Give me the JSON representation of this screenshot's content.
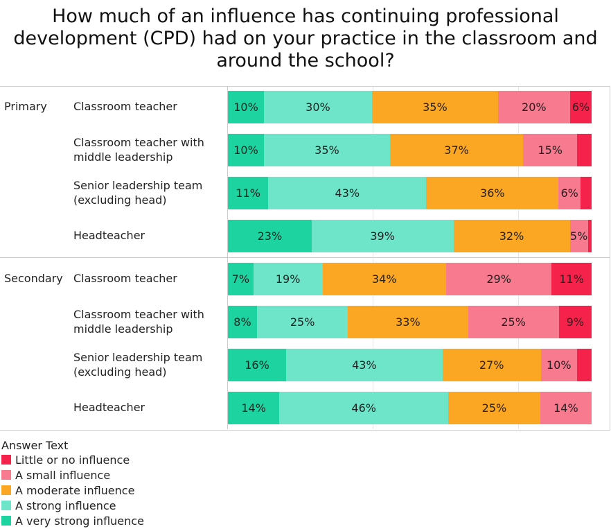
{
  "chart_data": {
    "type": "bar",
    "orientation": "horizontal-stacked-100",
    "title": "How much of an influence has continuing professional development (CPD) had on your practice in the classroom and around the school?",
    "groups": [
      {
        "name": "Primary",
        "rows": [
          {
            "label": "Classroom teacher",
            "values": [
              10,
              30,
              35,
              20,
              6
            ]
          },
          {
            "label": "Classroom teacher with middle leadership",
            "values": [
              10,
              35,
              37,
              15,
              4
            ]
          },
          {
            "label": "Senior leadership team (excluding head)",
            "values": [
              11,
              43,
              36,
              6,
              3
            ]
          },
          {
            "label": "Headteacher",
            "values": [
              23,
              39,
              32,
              5,
              1
            ]
          }
        ]
      },
      {
        "name": "Secondary",
        "rows": [
          {
            "label": "Classroom teacher",
            "values": [
              7,
              19,
              34,
              29,
              11
            ]
          },
          {
            "label": "Classroom teacher with middle leadership",
            "values": [
              8,
              25,
              33,
              25,
              9
            ]
          },
          {
            "label": "Senior leadership team (excluding head)",
            "values": [
              16,
              43,
              27,
              10,
              4
            ]
          },
          {
            "label": "Headteacher",
            "values": [
              14,
              46,
              25,
              14,
              0
            ]
          }
        ]
      }
    ],
    "series": [
      {
        "name": "A very strong influence",
        "color": "#1dd3a0"
      },
      {
        "name": "A strong influence",
        "color": "#6ee5c9"
      },
      {
        "name": "A moderate influence",
        "color": "#fba724"
      },
      {
        "name": "A small influence",
        "color": "#f87a8f"
      },
      {
        "name": "Little or no influence",
        "color": "#f5224b"
      }
    ],
    "label_min": 5,
    "legend_title": "Answer Text",
    "legend_order": [
      "Little or no influence",
      "A small influence",
      "A moderate influence",
      "A strong influence",
      "A very strong influence"
    ],
    "legend_position": "bottom-left",
    "xlim": [
      0,
      100
    ]
  }
}
